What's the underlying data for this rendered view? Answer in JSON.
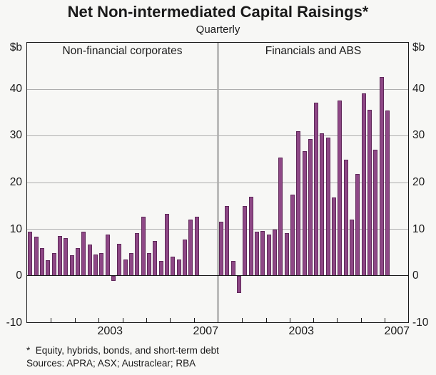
{
  "chart_data": {
    "type": "bar",
    "title": "Net Non-intermediated Capital Raisings*",
    "subtitle": "Quarterly",
    "unit_label": "$b",
    "ylim": [
      -10,
      50
    ],
    "ytick_labels": [
      40,
      30,
      20,
      10,
      0,
      -10
    ],
    "gridline_values": [
      40,
      30,
      20,
      10
    ],
    "grid": "horizontal-on",
    "legend": "none",
    "x_start_year": 2000,
    "x_years": 8,
    "xtick_label_years": [
      2003,
      2007
    ],
    "x": [
      "2000 Q1",
      "2000 Q2",
      "2000 Q3",
      "2000 Q4",
      "2001 Q1",
      "2001 Q2",
      "2001 Q3",
      "2001 Q4",
      "2002 Q1",
      "2002 Q2",
      "2002 Q3",
      "2002 Q4",
      "2003 Q1",
      "2003 Q2",
      "2003 Q3",
      "2003 Q4",
      "2004 Q1",
      "2004 Q2",
      "2004 Q3",
      "2004 Q4",
      "2005 Q1",
      "2005 Q2",
      "2005 Q3",
      "2005 Q4",
      "2006 Q1",
      "2006 Q2",
      "2006 Q3",
      "2006 Q4",
      "2007 Q1"
    ],
    "series": [
      {
        "name": "Non-financial corporates",
        "panel": "left",
        "values": [
          9.5,
          8.4,
          5.9,
          3.3,
          4.9,
          8.5,
          8.0,
          4.4,
          5.9,
          9.5,
          6.7,
          4.5,
          4.8,
          8.9,
          -1.2,
          6.9,
          3.4,
          4.9,
          9.1,
          12.7,
          4.8,
          7.5,
          3.1,
          13.2,
          4.1,
          3.4,
          7.7,
          12.1,
          12.6
        ]
      },
      {
        "name": "Financials and ABS",
        "panel": "right",
        "values": [
          11.6,
          14.9,
          3.1,
          -3.7,
          14.9,
          17.0,
          9.4,
          9.6,
          8.9,
          9.9,
          25.3,
          9.2,
          17.4,
          31.0,
          26.7,
          29.3,
          37.2,
          30.5,
          29.7,
          16.8,
          37.6,
          24.9,
          12.1,
          21.9,
          39.2,
          35.6,
          27.0,
          42.6,
          35.4
        ]
      }
    ],
    "footnote": "*  Equity, hybrids, bonds, and short-term debt",
    "sources": "Sources: APRA; ASX; Austraclear; RBA",
    "colors": {
      "bar_fill": "#8e4886",
      "bar_border": "#5f2759",
      "gridline": "#aeaeae",
      "axis": "#1a1a1a",
      "background": "#f7f7f5"
    }
  }
}
